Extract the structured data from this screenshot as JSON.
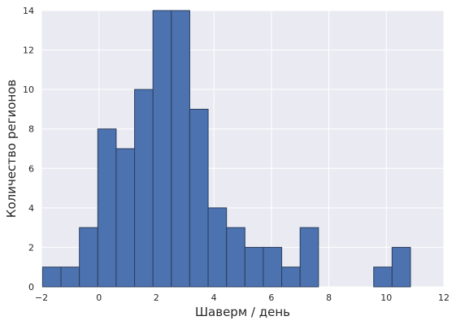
{
  "chart_data": {
    "type": "bar",
    "histogram": true,
    "xlabel": "Шаверм / день",
    "ylabel": "Количество регионов",
    "xlim": [
      -2,
      12
    ],
    "ylim": [
      0,
      14
    ],
    "x_ticks": [
      "−2",
      "0",
      "2",
      "4",
      "6",
      "8",
      "10",
      "12"
    ],
    "y_ticks": [
      "0",
      "2",
      "4",
      "6",
      "8",
      "10",
      "12",
      "14"
    ],
    "grid": true,
    "bins": [
      {
        "start": -1.96,
        "end": -1.32,
        "count": 1
      },
      {
        "start": -1.32,
        "end": -0.68,
        "count": 1
      },
      {
        "start": -0.68,
        "end": -0.04,
        "count": 3
      },
      {
        "start": -0.04,
        "end": 0.6,
        "count": 8
      },
      {
        "start": 0.6,
        "end": 1.24,
        "count": 7
      },
      {
        "start": 1.24,
        "end": 1.88,
        "count": 10
      },
      {
        "start": 1.88,
        "end": 2.52,
        "count": 14
      },
      {
        "start": 2.52,
        "end": 3.16,
        "count": 14
      },
      {
        "start": 3.16,
        "end": 3.8,
        "count": 9
      },
      {
        "start": 3.8,
        "end": 4.44,
        "count": 4
      },
      {
        "start": 4.44,
        "end": 5.08,
        "count": 3
      },
      {
        "start": 5.08,
        "end": 5.72,
        "count": 2
      },
      {
        "start": 5.72,
        "end": 6.36,
        "count": 2
      },
      {
        "start": 6.36,
        "end": 7.0,
        "count": 1
      },
      {
        "start": 7.0,
        "end": 7.64,
        "count": 3
      },
      {
        "start": 7.64,
        "end": 8.28,
        "count": 0
      },
      {
        "start": 8.28,
        "end": 8.92,
        "count": 0
      },
      {
        "start": 8.92,
        "end": 9.56,
        "count": 0
      },
      {
        "start": 9.56,
        "end": 10.2,
        "count": 1
      },
      {
        "start": 10.2,
        "end": 10.84,
        "count": 2
      }
    ],
    "colors": {
      "bar_fill": "#4c72b0",
      "bar_edge": "#2b3f5c",
      "plot_background": "#eaeaf2",
      "grid": "#ffffff"
    }
  }
}
